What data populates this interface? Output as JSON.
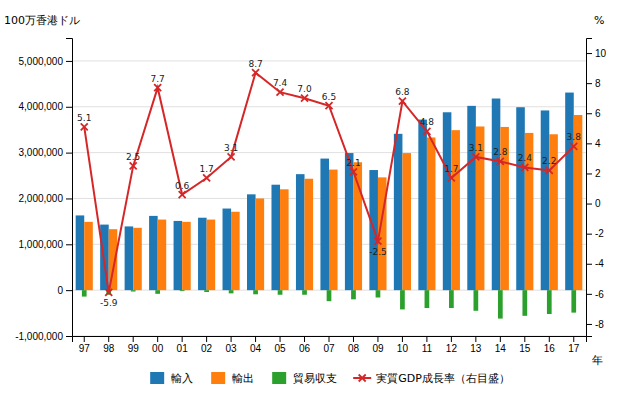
{
  "chart_data": {
    "type": "bar",
    "categories": [
      "97",
      "98",
      "99",
      "00",
      "01",
      "02",
      "03",
      "04",
      "05",
      "06",
      "07",
      "08",
      "09",
      "10",
      "11",
      "12",
      "13",
      "14",
      "15",
      "16",
      "17"
    ],
    "xlabel": "年",
    "ylabel": "100万香港ドル",
    "y2label": "%",
    "ylim": [
      -1000000,
      5500000
    ],
    "yticks": [
      {
        "value": -1000000,
        "label": "-1,000,000"
      },
      0,
      {
        "value": 1000000,
        "label": "1,000,000"
      },
      {
        "value": 2000000,
        "label": "2,000,000"
      },
      {
        "value": 3000000,
        "label": "3,000,000"
      },
      {
        "value": 4000000,
        "label": "4,000,000"
      },
      {
        "value": 5000000,
        "label": "5,000,000"
      }
    ],
    "y2lim": [
      -8.8,
      11.0
    ],
    "y2ticks": [
      -8,
      -6,
      -4,
      -2,
      0,
      2,
      4,
      6,
      8,
      10
    ],
    "grid": true,
    "legend": "bottom",
    "series": [
      {
        "name": "輸入",
        "type": "bar",
        "values": [
          1630000,
          1430000,
          1390000,
          1620000,
          1510000,
          1580000,
          1780000,
          2090000,
          2300000,
          2530000,
          2870000,
          2990000,
          2620000,
          3410000,
          3720000,
          3880000,
          4020000,
          4180000,
          3990000,
          3920000,
          4310000
        ]
      },
      {
        "name": "輸出",
        "type": "bar",
        "values": [
          1490000,
          1330000,
          1360000,
          1540000,
          1490000,
          1540000,
          1710000,
          2000000,
          2200000,
          2430000,
          2630000,
          2790000,
          2460000,
          2990000,
          3330000,
          3490000,
          3570000,
          3560000,
          3430000,
          3400000,
          3820000
        ]
      },
      {
        "name": "貿易収支",
        "type": "bar",
        "values": [
          -140000,
          -100000,
          -30000,
          -80000,
          -20000,
          -40000,
          -70000,
          -90000,
          -100000,
          -100000,
          -240000,
          -200000,
          -160000,
          -420000,
          -390000,
          -390000,
          -450000,
          -620000,
          -560000,
          -520000,
          -490000
        ]
      },
      {
        "name": "実質GDP成長率（右目盛）",
        "type": "line",
        "axis": "y2",
        "marker": "x",
        "data_labels": true,
        "values": [
          5.1,
          -5.9,
          2.5,
          7.7,
          0.6,
          1.7,
          3.1,
          8.7,
          7.4,
          7.0,
          6.5,
          2.1,
          -2.5,
          6.8,
          4.8,
          1.7,
          3.1,
          2.8,
          2.4,
          2.2,
          3.8
        ],
        "value_labels": [
          "5.1",
          "-5.9",
          "2.5",
          "7.7",
          "0.6",
          "1.7",
          "3.1",
          "8.7",
          "7.4",
          "7.0",
          "6.5",
          "2.1",
          "-2.5",
          "6.8",
          "4.8",
          "1.7",
          "3.1",
          "2.8",
          "2.4",
          "2.2",
          "3.8"
        ]
      }
    ]
  }
}
